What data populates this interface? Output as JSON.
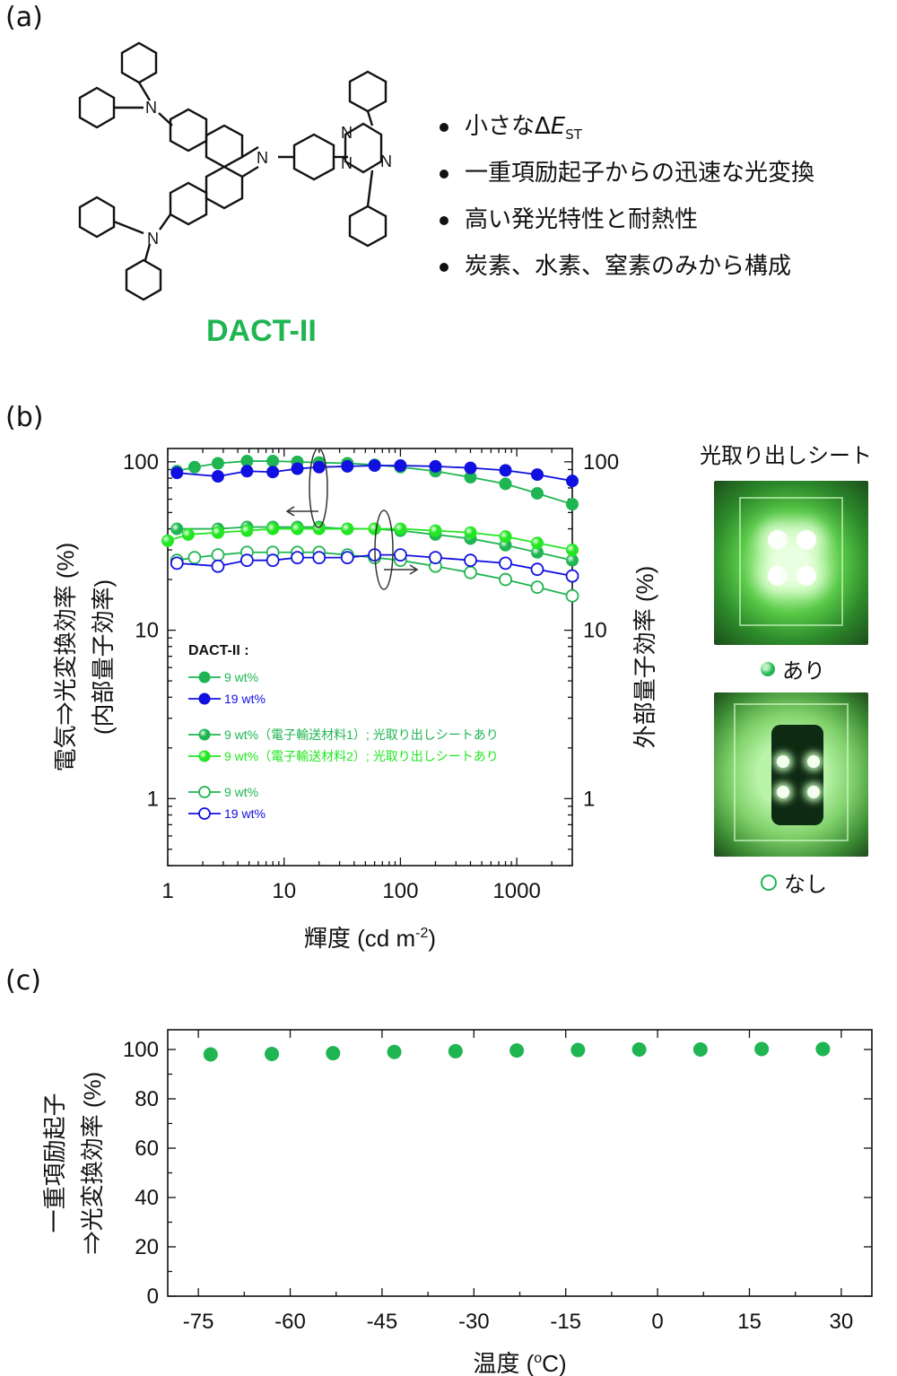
{
  "panels": {
    "a": "(a)",
    "b": "(b)",
    "c": "(c)"
  },
  "molecule": {
    "name": "DACT-II",
    "atoms": {
      "carbazole_n": "N",
      "amine_n1": "N",
      "amine_n2": "N",
      "triazine_n1": "N",
      "triazine_n2": "N",
      "triazine_n3": "N"
    }
  },
  "bullets": [
    {
      "text": "小さなΔ",
      "italic": "E",
      "sub": "ST"
    },
    {
      "text": "一重項励起子からの迅速な光変換"
    },
    {
      "text": "高い発光特性と耐熱性"
    },
    {
      "text": "炭素、水素、窒素のみから構成"
    }
  ],
  "photos": {
    "title": "光取り出しシート",
    "with_label": "あり",
    "without_label": "なし"
  },
  "colors": {
    "green": "#1fb552",
    "blue": "#1010e0",
    "lightgreen": "#22e622",
    "compound": "#1fb552"
  },
  "chart_data": [
    {
      "type": "scatter",
      "xscale": "log",
      "yscale": "log",
      "xlim": [
        1,
        3000
      ],
      "ylim": [
        0.4,
        120
      ],
      "xlabel": "輝度 (cd m",
      "xlabel_sup": "-2",
      "xlabel_end": ")",
      "ylabel_left": "電気⇒光変換効率 (%)",
      "ylabel_left2": "(内部量子効率)",
      "ylabel_right": "外部量子効率 (%)",
      "xticks": [
        "1",
        "10",
        "100",
        "1000"
      ],
      "yticks_left": [
        "1",
        "10",
        "100"
      ],
      "yticks_right": [
        "1",
        "10",
        "100"
      ],
      "legend_title": "DACT-II :",
      "legend": [
        {
          "label": "9 wt%",
          "color": "#1fb552",
          "marker": "filled"
        },
        {
          "label": "19 wt%",
          "color": "#1010e0",
          "marker": "filled"
        },
        {
          "label": "9 wt%（電子輸送材料1）; 光取り出しシートあり",
          "color": "#1fb552",
          "marker": "shaded"
        },
        {
          "label": "9 wt%（電子輸送材料2）; 光取り出しシートあり",
          "color": "#22e622",
          "marker": "shaded"
        },
        {
          "label": "9 wt%",
          "color": "#1fb552",
          "marker": "open"
        },
        {
          "label": "19 wt%",
          "color": "#1010e0",
          "marker": "open"
        }
      ],
      "series": [
        {
          "name": "9 wt%",
          "marker": "filled",
          "color": "#1fb552",
          "x": [
            1.2,
            1.7,
            2.7,
            4.8,
            8,
            13,
            20,
            35,
            60,
            100,
            200,
            400,
            800,
            1500,
            3000
          ],
          "y": [
            88,
            93,
            98,
            101,
            101,
            100,
            99,
            98,
            96,
            93,
            88,
            81,
            74,
            65,
            56
          ]
        },
        {
          "name": "19 wt%",
          "marker": "filled",
          "color": "#1010e0",
          "x": [
            1.2,
            2.7,
            4.8,
            8,
            13,
            20,
            35,
            60,
            100,
            200,
            400,
            800,
            1500,
            3000
          ],
          "y": [
            86,
            82,
            88,
            87,
            91,
            93,
            94,
            95,
            95,
            94,
            92,
            89,
            84,
            77
          ]
        },
        {
          "name": "9 wt%（電子輸送材料1）; 光取り出しシートあり",
          "marker": "shaded",
          "color": "#1fb552",
          "x": [
            1.2,
            2.7,
            4.8,
            8,
            13,
            20,
            35,
            60,
            100,
            200,
            400,
            800,
            1500,
            3000
          ],
          "y": [
            40,
            40,
            41,
            41,
            41,
            41,
            40,
            40,
            39,
            37,
            35,
            32,
            29,
            26
          ]
        },
        {
          "name": "9 wt%（電子輸送材料2）; 光取り出しシートあり",
          "marker": "shaded",
          "color": "#22e622",
          "x": [
            1,
            1.5,
            2.7,
            4.8,
            8,
            13,
            20,
            35,
            60,
            100,
            200,
            400,
            800,
            1500,
            3000
          ],
          "y": [
            34,
            37,
            38,
            39,
            40,
            40,
            40,
            40,
            40,
            40,
            39,
            38,
            36,
            33,
            30
          ]
        },
        {
          "name": "9 wt%",
          "marker": "open",
          "color": "#1fb552",
          "x": [
            1.2,
            1.7,
            2.7,
            4.8,
            8,
            13,
            20,
            35,
            60,
            100,
            200,
            400,
            800,
            1500,
            3000
          ],
          "y": [
            26,
            27,
            28,
            29,
            29,
            29,
            29,
            28,
            27,
            26,
            24,
            22,
            20,
            18,
            16
          ]
        },
        {
          "name": "19 wt%",
          "marker": "open",
          "color": "#1010e0",
          "x": [
            1.2,
            2.7,
            4.8,
            8,
            13,
            20,
            35,
            60,
            100,
            200,
            400,
            800,
            1500,
            3000
          ],
          "y": [
            25,
            24,
            26,
            26,
            27,
            27,
            27,
            28,
            28,
            27,
            26,
            25,
            23,
            21
          ]
        }
      ]
    },
    {
      "type": "scatter",
      "xlim": [
        -80,
        35
      ],
      "ylim": [
        0,
        108
      ],
      "xlabel": "温度 (",
      "xlabel_sup": "o",
      "xlabel_end": "C)",
      "ylabel_line1": "一重項励起子",
      "ylabel_line2": "⇒光変換効率 (%)",
      "xticks": [
        "-75",
        "-60",
        "-45",
        "-30",
        "-15",
        "0",
        "15",
        "30"
      ],
      "yticks": [
        "0",
        "20",
        "40",
        "60",
        "80",
        "100"
      ],
      "series": [
        {
          "name": "",
          "color": "#1fb552",
          "x": [
            -73,
            -63,
            -53,
            -43,
            -33,
            -23,
            -13,
            -3,
            7,
            17,
            27
          ],
          "y": [
            98,
            98.2,
            98.5,
            99,
            99.3,
            99.6,
            99.8,
            100,
            100,
            100.2,
            100.2
          ]
        }
      ]
    }
  ]
}
